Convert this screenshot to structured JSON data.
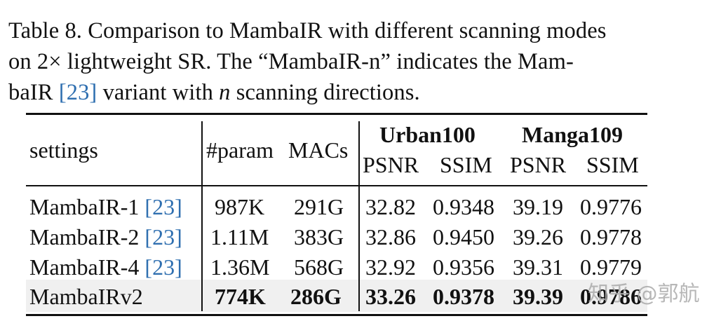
{
  "caption": {
    "line1": "Table 8. Comparison to MambaIR with different scanning modes",
    "line2_pre": "on 2× lightweight SR. The “MambaIR-n” indicates the Mam-",
    "line3_pre": "baIR ",
    "line3_cite": "[23]",
    "line3_mid": " variant with ",
    "line3_var": "n",
    "line3_post": " scanning directions."
  },
  "table": {
    "headers": {
      "settings": "settings",
      "param": "#param",
      "macs": "MACs",
      "group1": "Urban100",
      "group2": "Manga109",
      "psnr": "PSNR",
      "ssim": "SSIM"
    },
    "rows": [
      {
        "name": "MambaIR-1 ",
        "cite": "[23]",
        "param": "987K",
        "macs": "291G",
        "u_psnr": "32.82",
        "u_ssim": "0.9348",
        "m_psnr": "39.19",
        "m_ssim": "0.9776"
      },
      {
        "name": "MambaIR-2 ",
        "cite": "[23]",
        "param": "1.11M",
        "macs": "383G",
        "u_psnr": "32.86",
        "u_ssim": "0.9450",
        "m_psnr": "39.26",
        "m_ssim": "0.9778"
      },
      {
        "name": "MambaIR-4 ",
        "cite": "[23]",
        "param": "1.36M",
        "macs": "568G",
        "u_psnr": "32.92",
        "u_ssim": "0.9356",
        "m_psnr": "39.31",
        "m_ssim": "0.9779"
      },
      {
        "name": "MambaIRv2",
        "cite": "",
        "param": "774K",
        "macs": "286G",
        "u_psnr": "33.26",
        "u_ssim": "0.9378",
        "m_psnr": "39.39",
        "m_ssim": "0.9786"
      }
    ]
  },
  "watermark": "知乎 @郭航",
  "colors": {
    "citation": "#2f6fb0",
    "highlight_row": "#f0f0f0"
  }
}
